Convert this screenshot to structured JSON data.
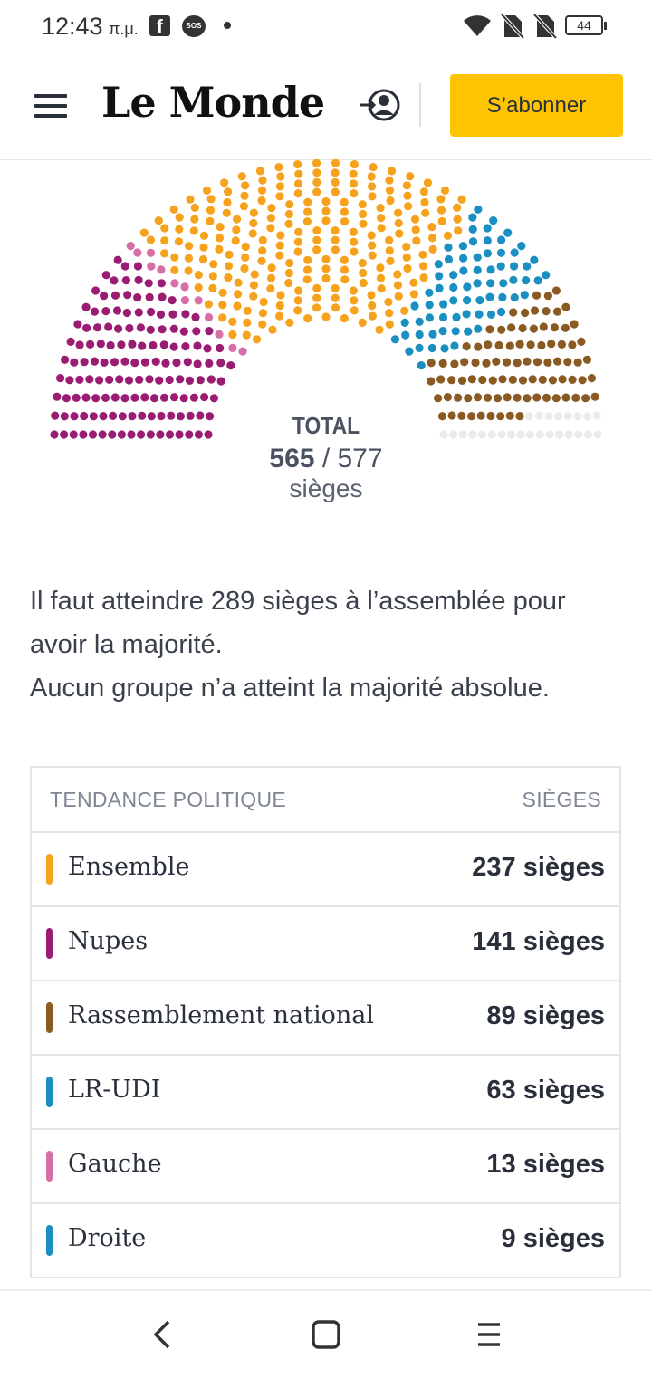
{
  "status_bar": {
    "time": "12:43",
    "ampm": "π.μ.",
    "battery": "44",
    "icons": [
      "facebook-icon",
      "sos-icon",
      "dot-icon",
      "wifi-icon",
      "no-sim-icon",
      "no-sim-icon",
      "battery-icon"
    ]
  },
  "header": {
    "logo": "Le Monde",
    "subscribe_label": "S’abonner",
    "accent_color": "#ffc400"
  },
  "hemicycle": {
    "total_label": "TOTAL",
    "seats_assigned": "565",
    "seats_separator": " / ",
    "seats_total": "577",
    "unit": "sièges",
    "unassigned_color": "#e9ebee"
  },
  "info": {
    "line1": "Il faut atteindre 289 sièges à l’assemblée pour avoir la majorité.",
    "line2": "Aucun groupe n’a atteint la majorité absolue."
  },
  "table": {
    "col_party": "TENDANCE POLITIQUE",
    "col_seats": "SIÈGES",
    "rows": [
      {
        "name": "Ensemble",
        "seats": "237 sièges",
        "color": "#f6a21c"
      },
      {
        "name": "Nupes",
        "seats": "141 sièges",
        "color": "#9b1c73"
      },
      {
        "name": "Rassemblement national",
        "seats": "89 sièges",
        "color": "#8a5a22"
      },
      {
        "name": "LR-UDI",
        "seats": "63 sièges",
        "color": "#1a8fc1"
      },
      {
        "name": "Gauche",
        "seats": "13 sièges",
        "color": "#d66fa6"
      },
      {
        "name": "Droite",
        "seats": "9 sièges",
        "color": "#1a8fc1"
      }
    ]
  },
  "chart_data": {
    "type": "hemicycle",
    "total_seats": 577,
    "assigned_seats": 565,
    "series": [
      {
        "name": "Nupes",
        "value": 141,
        "color": "#9b1c73"
      },
      {
        "name": "Gauche",
        "value": 13,
        "color": "#d66fa6"
      },
      {
        "name": "Ensemble",
        "value": 237,
        "color": "#f6a21c"
      },
      {
        "name": "Droite",
        "value": 9,
        "color": "#1a8fc1"
      },
      {
        "name": "LR-UDI",
        "value": 63,
        "color": "#1a8fc1"
      },
      {
        "name": "Rassemblement national",
        "value": 89,
        "color": "#8a5a22"
      }
    ]
  }
}
